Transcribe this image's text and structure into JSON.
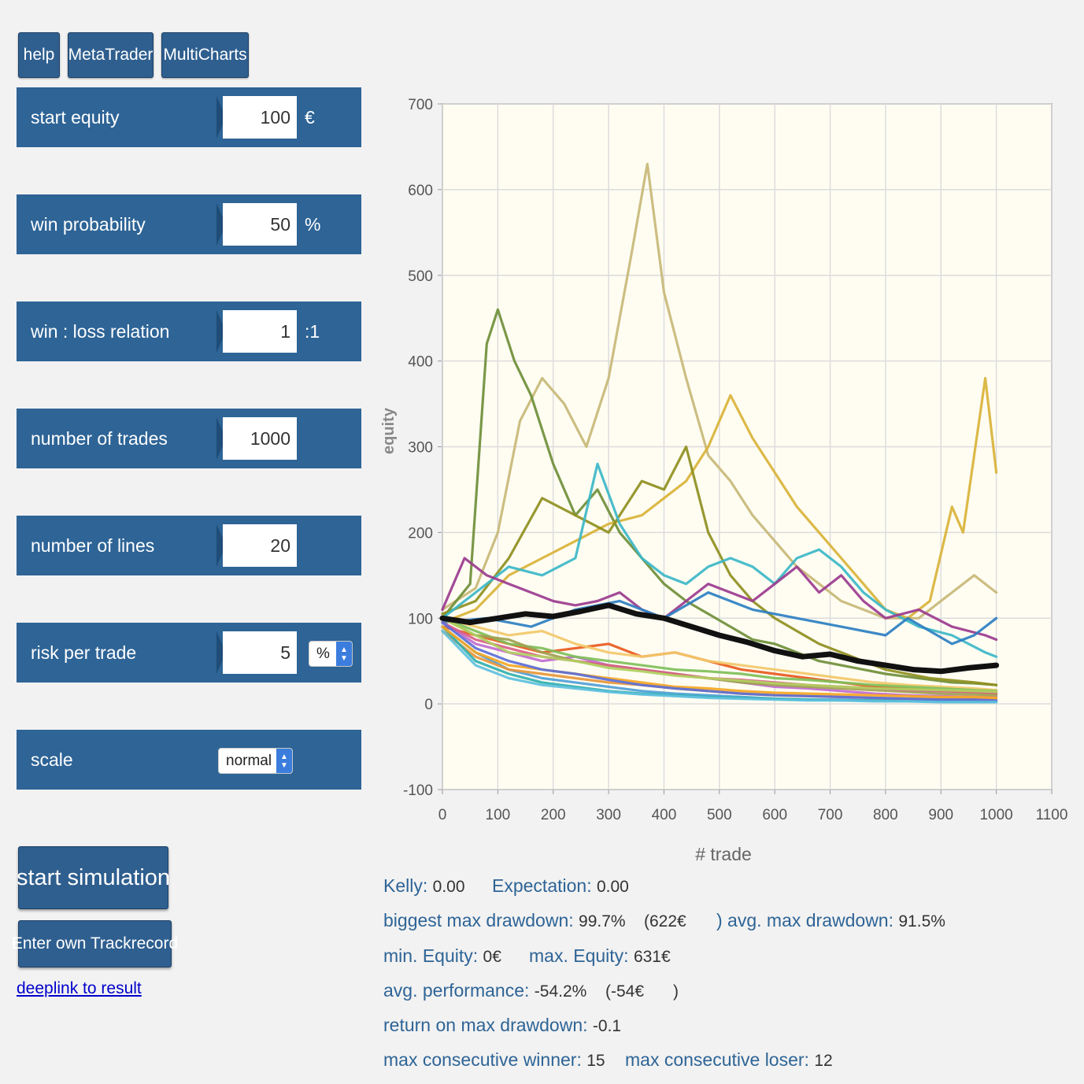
{
  "top_buttons": [
    "help",
    "MetaTrader",
    "MultiCharts"
  ],
  "params": {
    "start_equity": {
      "label": "start equity",
      "value": "100",
      "unit": "€"
    },
    "win_probability": {
      "label": "win probability",
      "value": "50",
      "unit": "%"
    },
    "win_loss": {
      "label": "win : loss relation",
      "value": "1",
      "unit": ":1"
    },
    "num_trades": {
      "label": "number of trades",
      "value": "1000"
    },
    "num_lines": {
      "label": "number of lines",
      "value": "20"
    },
    "risk": {
      "label": "risk per trade",
      "value": "5",
      "unit_select": "%"
    },
    "scale": {
      "label": "scale",
      "select": "normal"
    }
  },
  "actions": {
    "start": "start simulation",
    "trackrecord": "Enter own Trackrecord",
    "deeplink": "deeplink to result"
  },
  "stats": {
    "kelly_label": "Kelly:",
    "kelly": "0.00",
    "expectation_label": "Expectation:",
    "expectation": "0.00",
    "biggest_dd_label": "biggest max drawdown:",
    "biggest_dd": "99.7%",
    "biggest_dd_eur": "(622€",
    "avg_dd_label": ") avg. max drawdown:",
    "avg_dd": "91.5%",
    "min_eq_label": "min. Equity:",
    "min_eq": "0€",
    "max_eq_label": "max. Equity:",
    "max_eq": "631€",
    "avg_perf_label": "avg. performance:",
    "avg_perf": "-54.2%",
    "avg_perf_eur": "(-54€",
    "avg_perf_close": ")",
    "romad_label": "return on max drawdown:",
    "romad": "-0.1",
    "max_win_label": "max consecutive winner:",
    "max_win": "15",
    "max_lose_label": "max consecutive loser:",
    "max_lose": "12"
  },
  "chart_data": {
    "type": "line",
    "xlabel": "# trade",
    "ylabel": "equity",
    "xlim": [
      0,
      1100
    ],
    "ylim": [
      -100,
      700
    ],
    "xticks": [
      "0",
      "100",
      "200",
      "300",
      "400",
      "500",
      "600",
      "700",
      "800",
      "900",
      "1000",
      "1100"
    ],
    "yticks": [
      "700",
      "600",
      "500",
      "400",
      "300",
      "200",
      "100",
      "0",
      "-100"
    ],
    "grid": true,
    "series": [
      {
        "color": "#c8b878",
        "x": [
          0,
          60,
          100,
          140,
          180,
          220,
          260,
          300,
          340,
          370,
          400,
          440,
          480,
          520,
          560,
          600,
          640,
          680,
          720,
          760,
          800,
          860,
          920,
          960,
          1000
        ],
        "y": [
          110,
          135,
          200,
          330,
          380,
          350,
          300,
          380,
          520,
          630,
          480,
          380,
          290,
          260,
          220,
          190,
          160,
          140,
          120,
          110,
          100,
          100,
          130,
          150,
          130
        ]
      },
      {
        "color": "#6f8f3a",
        "x": [
          0,
          50,
          80,
          100,
          130,
          160,
          200,
          240,
          280,
          320,
          360,
          400,
          440,
          480,
          520,
          560,
          600,
          640,
          680,
          720,
          760,
          800,
          860,
          920,
          960,
          1000
        ],
        "y": [
          100,
          140,
          420,
          460,
          400,
          360,
          280,
          220,
          250,
          200,
          170,
          140,
          120,
          105,
          90,
          75,
          70,
          60,
          50,
          45,
          40,
          35,
          30,
          25,
          24,
          22
        ]
      },
      {
        "color": "#d9b33a",
        "x": [
          0,
          60,
          120,
          180,
          240,
          300,
          360,
          400,
          440,
          480,
          520,
          560,
          600,
          640,
          680,
          720,
          760,
          800,
          840,
          880,
          920,
          940,
          980,
          1000
        ],
        "y": [
          95,
          110,
          150,
          170,
          190,
          210,
          220,
          240,
          260,
          300,
          360,
          310,
          270,
          230,
          200,
          170,
          140,
          110,
          100,
          120,
          230,
          200,
          380,
          270
        ]
      },
      {
        "color": "#8f8f20",
        "x": [
          0,
          60,
          120,
          180,
          240,
          300,
          360,
          400,
          440,
          480,
          520,
          560,
          600,
          640,
          680,
          720,
          760,
          800,
          880,
          960,
          1000
        ],
        "y": [
          105,
          120,
          170,
          240,
          220,
          200,
          260,
          250,
          300,
          200,
          150,
          120,
          100,
          85,
          70,
          60,
          50,
          40,
          30,
          25,
          22
        ]
      },
      {
        "color": "#3cb7c8",
        "x": [
          0,
          60,
          120,
          180,
          240,
          280,
          320,
          360,
          400,
          440,
          480,
          520,
          560,
          600,
          640,
          680,
          720,
          760,
          800,
          860,
          920,
          980,
          1000
        ],
        "y": [
          100,
          130,
          160,
          150,
          170,
          280,
          210,
          170,
          150,
          140,
          160,
          170,
          160,
          140,
          170,
          180,
          160,
          130,
          110,
          90,
          80,
          60,
          55
        ]
      },
      {
        "color": "#9b3b8f",
        "x": [
          0,
          40,
          80,
          120,
          160,
          200,
          240,
          280,
          320,
          360,
          400,
          440,
          480,
          520,
          560,
          600,
          640,
          680,
          720,
          760,
          800,
          860,
          920,
          980,
          1000
        ],
        "y": [
          110,
          170,
          150,
          140,
          130,
          120,
          115,
          120,
          130,
          110,
          100,
          120,
          140,
          130,
          120,
          140,
          160,
          130,
          150,
          120,
          100,
          110,
          90,
          80,
          75
        ]
      },
      {
        "color": "#2d7fc2",
        "x": [
          0,
          80,
          160,
          240,
          320,
          400,
          480,
          560,
          640,
          720,
          800,
          840,
          880,
          920,
          960,
          1000
        ],
        "y": [
          95,
          100,
          90,
          110,
          120,
          100,
          130,
          110,
          100,
          90,
          80,
          100,
          85,
          70,
          80,
          100
        ]
      },
      {
        "color": "#e85a20",
        "x": [
          0,
          60,
          120,
          180,
          240,
          300,
          360,
          420,
          480,
          540,
          600,
          660,
          720,
          780,
          840,
          900,
          960,
          1000
        ],
        "y": [
          90,
          80,
          70,
          60,
          65,
          70,
          55,
          60,
          50,
          40,
          35,
          30,
          25,
          20,
          18,
          15,
          14,
          12
        ]
      },
      {
        "color": "#f2c86a",
        "x": [
          0,
          60,
          120,
          180,
          240,
          300,
          360,
          420,
          480,
          540,
          600,
          660,
          720,
          780,
          840,
          900,
          960,
          1000
        ],
        "y": [
          100,
          90,
          80,
          85,
          70,
          60,
          55,
          60,
          50,
          45,
          40,
          35,
          30,
          25,
          22,
          20,
          18,
          16
        ]
      },
      {
        "color": "#c06bd0",
        "x": [
          0,
          60,
          120,
          180,
          240,
          300,
          360,
          420,
          480,
          540,
          600,
          660,
          720,
          780,
          840,
          900,
          960,
          1000
        ],
        "y": [
          95,
          70,
          60,
          50,
          55,
          45,
          40,
          35,
          30,
          25,
          20,
          18,
          15,
          12,
          10,
          9,
          8,
          8
        ]
      },
      {
        "color": "#4fa0d8",
        "x": [
          0,
          60,
          120,
          180,
          240,
          300,
          360,
          420,
          480,
          540,
          600,
          660,
          720,
          780,
          840,
          900,
          960,
          1000
        ],
        "y": [
          90,
          60,
          40,
          30,
          25,
          20,
          15,
          12,
          10,
          8,
          6,
          5,
          5,
          4,
          4,
          3,
          3,
          3
        ]
      },
      {
        "color": "#e8963a",
        "x": [
          0,
          60,
          120,
          180,
          240,
          300,
          360,
          420,
          480,
          540,
          600,
          660,
          720,
          780,
          840,
          900,
          960,
          1000
        ],
        "y": [
          85,
          55,
          40,
          35,
          30,
          25,
          22,
          18,
          15,
          12,
          10,
          9,
          8,
          7,
          6,
          6,
          5,
          5
        ]
      },
      {
        "color": "#7fbf5a",
        "x": [
          0,
          60,
          120,
          180,
          240,
          300,
          360,
          420,
          480,
          540,
          600,
          660,
          720,
          780,
          840,
          900,
          960,
          1000
        ],
        "y": [
          100,
          85,
          70,
          65,
          55,
          50,
          45,
          40,
          38,
          35,
          30,
          28,
          25,
          22,
          20,
          18,
          16,
          15
        ]
      },
      {
        "color": "#30b0b0",
        "x": [
          0,
          60,
          120,
          180,
          240,
          300,
          360,
          420,
          480,
          540,
          600,
          660,
          720,
          780,
          840,
          900,
          960,
          1000
        ],
        "y": [
          90,
          50,
          35,
          25,
          20,
          15,
          12,
          10,
          8,
          7,
          6,
          5,
          4,
          4,
          3,
          3,
          2,
          2
        ]
      },
      {
        "color": "#a0a050",
        "x": [
          0,
          60,
          120,
          180,
          240,
          300,
          360,
          420,
          480,
          540,
          600,
          660,
          720,
          780,
          840,
          900,
          960,
          1000
        ],
        "y": [
          100,
          80,
          75,
          60,
          50,
          45,
          40,
          35,
          30,
          25,
          22,
          20,
          18,
          16,
          14,
          12,
          11,
          10
        ]
      },
      {
        "color": "#d95f8a",
        "x": [
          0,
          60,
          120,
          180,
          240,
          300,
          360,
          420,
          480,
          540,
          600,
          660,
          720,
          780,
          840,
          900,
          960,
          1000
        ],
        "y": [
          95,
          75,
          65,
          55,
          50,
          45,
          40,
          35,
          30,
          28,
          25,
          22,
          20,
          18,
          16,
          15,
          14,
          13
        ]
      },
      {
        "color": "#f5a623",
        "x": [
          0,
          60,
          120,
          180,
          240,
          300,
          360,
          420,
          480,
          540,
          600,
          660,
          720,
          780,
          840,
          900,
          960,
          1000
        ],
        "y": [
          90,
          60,
          45,
          40,
          35,
          30,
          25,
          20,
          18,
          15,
          13,
          12,
          11,
          10,
          9,
          8,
          8,
          7
        ]
      },
      {
        "color": "#5b6fd8",
        "x": [
          0,
          60,
          120,
          180,
          240,
          300,
          360,
          420,
          480,
          540,
          600,
          660,
          720,
          780,
          840,
          900,
          960,
          1000
        ],
        "y": [
          95,
          65,
          50,
          40,
          35,
          28,
          22,
          18,
          15,
          12,
          10,
          9,
          8,
          7,
          6,
          5,
          5,
          4
        ]
      },
      {
        "color": "#b0d060",
        "x": [
          0,
          60,
          120,
          180,
          240,
          300,
          360,
          420,
          480,
          540,
          600,
          660,
          720,
          780,
          840,
          900,
          960,
          1000
        ],
        "y": [
          100,
          80,
          60,
          55,
          50,
          42,
          38,
          33,
          30,
          27,
          24,
          22,
          20,
          18,
          17,
          16,
          15,
          14
        ]
      },
      {
        "color": "#60c0e0",
        "x": [
          0,
          60,
          120,
          180,
          240,
          300,
          360,
          420,
          480,
          540,
          600,
          660,
          720,
          780,
          840,
          900,
          960,
          1000
        ],
        "y": [
          85,
          45,
          30,
          22,
          18,
          14,
          11,
          9,
          7,
          6,
          5,
          4,
          4,
          3,
          3,
          2,
          2,
          2
        ]
      },
      {
        "color": "#111111",
        "x": [
          0,
          50,
          100,
          150,
          200,
          250,
          300,
          350,
          400,
          450,
          500,
          550,
          600,
          650,
          700,
          750,
          800,
          850,
          900,
          950,
          1000
        ],
        "y": [
          100,
          95,
          100,
          105,
          102,
          108,
          115,
          105,
          100,
          90,
          80,
          72,
          62,
          55,
          58,
          50,
          45,
          40,
          38,
          42,
          45
        ]
      }
    ]
  }
}
